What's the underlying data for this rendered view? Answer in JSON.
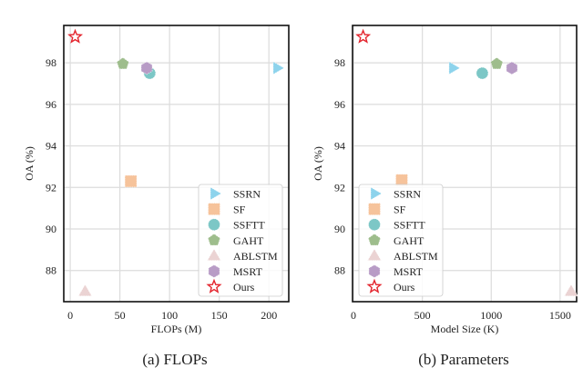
{
  "chart_data": [
    {
      "type": "scatter",
      "caption": "(a) FLOPs",
      "xlabel": "FLOPs (M)",
      "ylabel": "OA (%)",
      "xlim": [
        -6.5,
        220
      ],
      "ylim": [
        86.5,
        99.8
      ],
      "xticks": [
        0,
        50,
        100,
        150,
        200
      ],
      "yticks": [
        88,
        90,
        92,
        94,
        96,
        98
      ],
      "grid": true,
      "legend_position": "bottom-right",
      "series": [
        {
          "name": "SSRN",
          "marker": "triangle-right",
          "color": "#8DD3EC",
          "x": 208,
          "y": 97.75
        },
        {
          "name": "SF",
          "marker": "square",
          "color": "#F6C39B",
          "x": 61,
          "y": 92.3
        },
        {
          "name": "SSFTT",
          "marker": "circle",
          "color": "#7CC7C6",
          "x": 80,
          "y": 97.5
        },
        {
          "name": "GAHT",
          "marker": "pentagon",
          "color": "#9EBD8C",
          "x": 53,
          "y": 97.95
        },
        {
          "name": "ABLSTM",
          "marker": "triangle-up",
          "color": "#EBD3D3",
          "x": 15,
          "y": 87.0
        },
        {
          "name": "MSRT",
          "marker": "hexagon",
          "color": "#B89CC6",
          "x": 77,
          "y": 97.75
        },
        {
          "name": "Ours",
          "marker": "star",
          "color": "#E3232C",
          "x": 5,
          "y": 99.25
        }
      ]
    },
    {
      "type": "scatter",
      "caption": "(b) Parameters",
      "xlabel": "Model Size (K)",
      "ylabel": "OA (%)",
      "xlim": [
        -7,
        1620
      ],
      "ylim": [
        86.5,
        99.8
      ],
      "xticks": [
        0,
        500,
        1000,
        1500
      ],
      "yticks": [
        88,
        90,
        92,
        94,
        96,
        98
      ],
      "grid": true,
      "legend_position": "bottom-left",
      "series": [
        {
          "name": "SSRN",
          "marker": "triangle-right",
          "color": "#8DD3EC",
          "x": 720,
          "y": 97.75
        },
        {
          "name": "SF",
          "marker": "square",
          "color": "#F6C39B",
          "x": 350,
          "y": 92.35
        },
        {
          "name": "SSFTT",
          "marker": "circle",
          "color": "#7CC7C6",
          "x": 935,
          "y": 97.5
        },
        {
          "name": "GAHT",
          "marker": "pentagon",
          "color": "#9EBD8C",
          "x": 1040,
          "y": 97.95
        },
        {
          "name": "ABLSTM",
          "marker": "triangle-up",
          "color": "#EBD3D3",
          "x": 1580,
          "y": 87.0
        },
        {
          "name": "MSRT",
          "marker": "hexagon",
          "color": "#B89CC6",
          "x": 1150,
          "y": 97.75
        },
        {
          "name": "Ours",
          "marker": "star",
          "color": "#E3232C",
          "x": 70,
          "y": 99.25
        }
      ]
    }
  ]
}
